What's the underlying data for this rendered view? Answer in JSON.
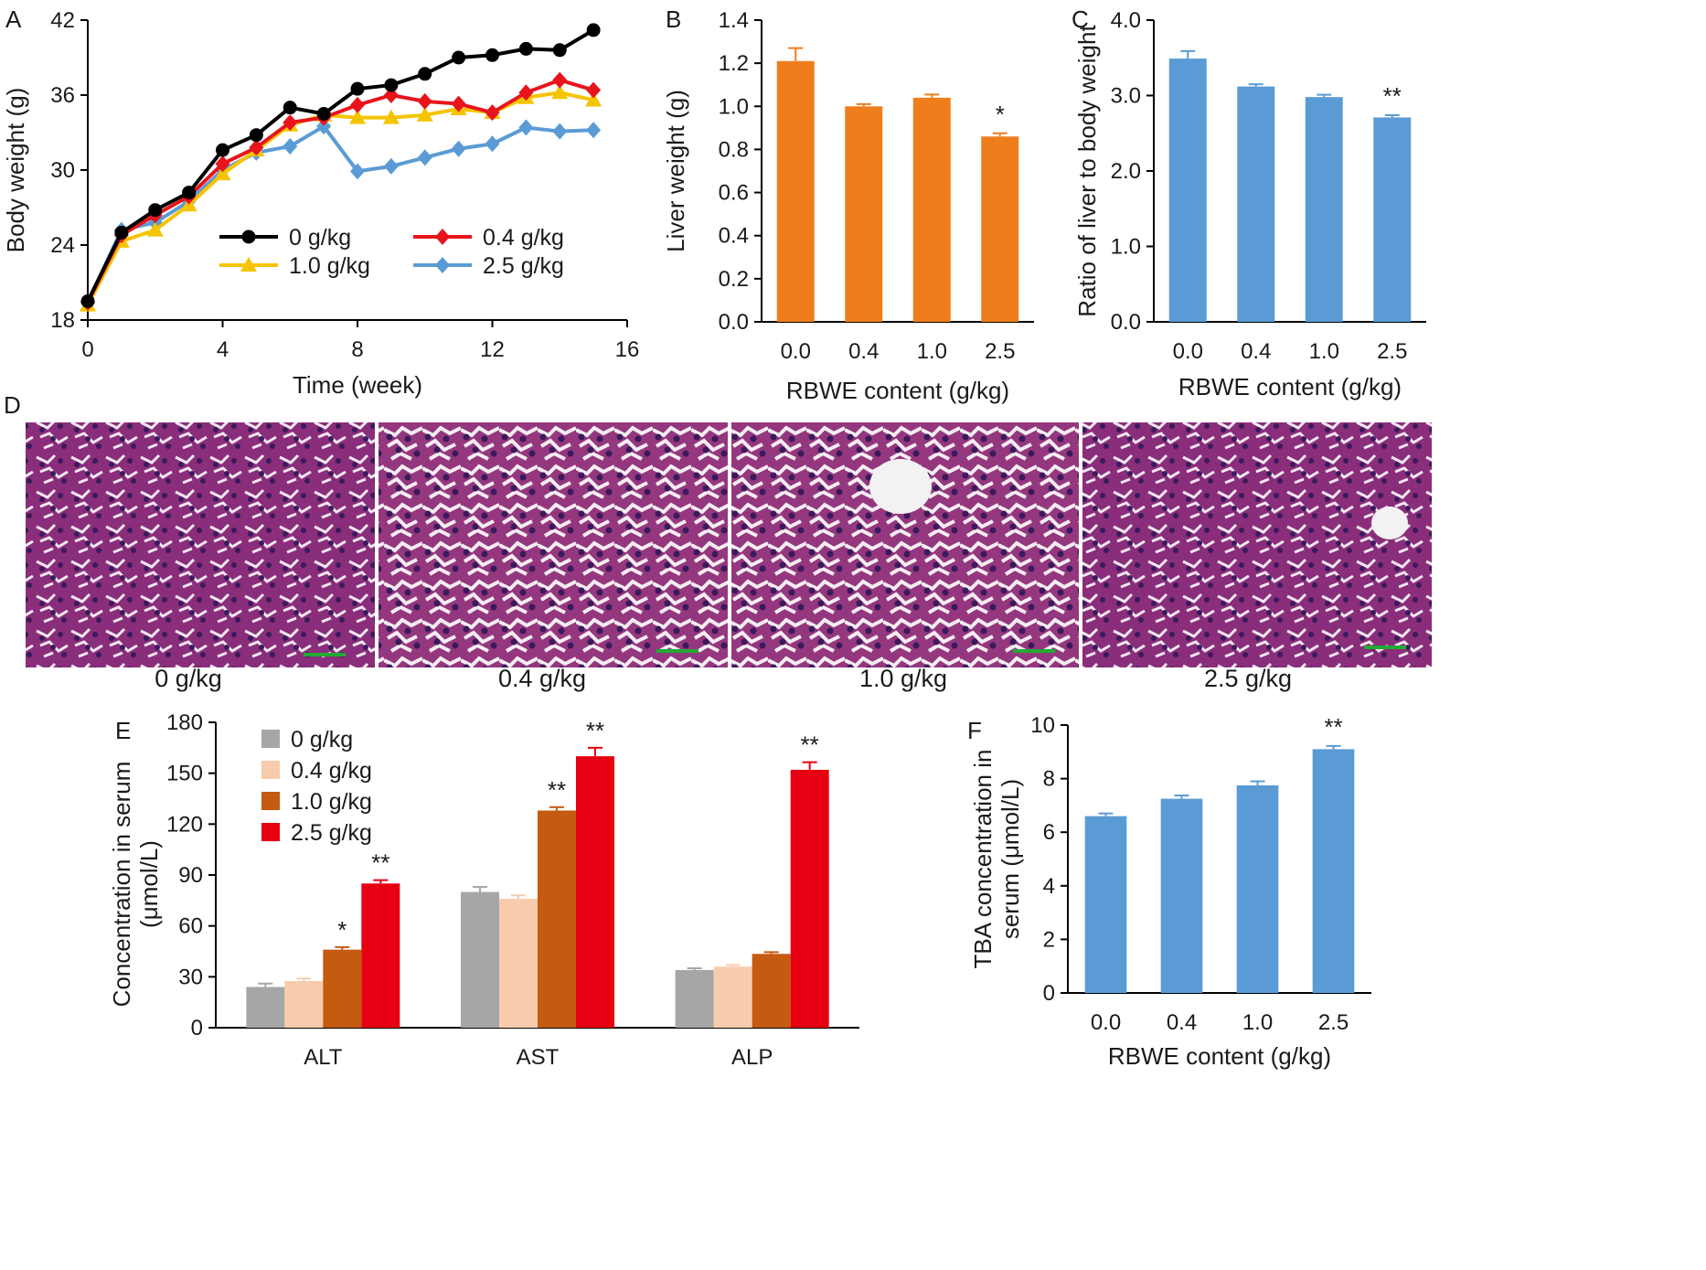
{
  "panels": {
    "A": {
      "label": "A"
    },
    "B": {
      "label": "B"
    },
    "C": {
      "label": "C"
    },
    "D": {
      "label": "D",
      "captions": [
        "0 g/kg",
        "0.4 g/kg",
        "1.0 g/kg",
        "2.5 g/kg"
      ]
    },
    "E": {
      "label": "E"
    },
    "F": {
      "label": "F"
    }
  },
  "colors": {
    "black": "#000000",
    "red": "#e8141c",
    "yellow": "#f5c400",
    "blue": "#5b9bd5",
    "orange": "#ef7d1c",
    "grey": "#a6a6a6",
    "peach": "#f8cbad",
    "burnt": "#c55a11",
    "brightred": "#e60012"
  },
  "chart_data": [
    {
      "id": "A",
      "type": "line",
      "xlabel": "Time (week)",
      "ylabel": "Body weight (g)",
      "xlim": [
        0,
        16
      ],
      "ylim": [
        18,
        42
      ],
      "xticks": [
        "0",
        "4",
        "8",
        "12",
        "16"
      ],
      "yticks": [
        "18",
        "24",
        "30",
        "36",
        "42"
      ],
      "x": [
        0,
        1,
        2,
        3,
        4,
        5,
        6,
        7,
        8,
        9,
        10,
        11,
        12,
        13,
        14,
        15
      ],
      "legend_position": "center",
      "series": [
        {
          "name": "0 g/kg",
          "color": "#000000",
          "marker": "circle",
          "values": [
            19.5,
            25,
            26.8,
            28.2,
            31.6,
            32.8,
            35,
            34.5,
            36.5,
            36.8,
            37.7,
            39,
            39.2,
            39.7,
            39.6,
            41.2
          ]
        },
        {
          "name": "0.4 g/kg",
          "color": "#e8141c",
          "marker": "diamond",
          "values": [
            19.4,
            24.8,
            26.4,
            27.9,
            30.5,
            31.8,
            33.8,
            34.2,
            35.2,
            36,
            35.5,
            35.3,
            34.6,
            36.2,
            37.2,
            36.4
          ]
        },
        {
          "name": "1.0 g/kg",
          "color": "#f5c400",
          "marker": "triangle",
          "values": [
            19.2,
            24.3,
            25.2,
            27.2,
            29.7,
            31.6,
            33.6,
            34.4,
            34.2,
            34.2,
            34.4,
            34.9,
            34.6,
            35.8,
            36.2,
            35.6
          ]
        },
        {
          "name": "2.5 g/kg",
          "color": "#5b9bd5",
          "marker": "diamond",
          "values": [
            19.4,
            25.2,
            25.8,
            27.5,
            30,
            31.4,
            31.9,
            33.5,
            29.9,
            30.3,
            31,
            31.7,
            32.1,
            33.4,
            33.1,
            33.2
          ]
        }
      ]
    },
    {
      "id": "B",
      "type": "bar",
      "xlabel": "RBWE content (g/kg)",
      "ylabel": "Liver weight (g)",
      "categories": [
        "0.0",
        "0.4",
        "1.0",
        "2.5"
      ],
      "values": [
        1.21,
        1.0,
        1.04,
        0.86
      ],
      "errors": [
        0.06,
        0.01,
        0.015,
        0.015
      ],
      "annotations": [
        "",
        "",
        "",
        "*"
      ],
      "ylim": [
        0,
        1.4
      ],
      "yticks": [
        "0.0",
        "0.2",
        "0.4",
        "0.6",
        "0.8",
        "1.0",
        "1.2",
        "1.4"
      ],
      "color": "#ef7d1c"
    },
    {
      "id": "C",
      "type": "bar",
      "xlabel": "RBWE content (g/kg)",
      "ylabel": "Ratio of liver to body weight",
      "categories": [
        "0.0",
        "0.4",
        "1.0",
        "2.5"
      ],
      "values": [
        3.49,
        3.12,
        2.98,
        2.71
      ],
      "errors": [
        0.1,
        0.03,
        0.03,
        0.03
      ],
      "annotations": [
        "",
        "",
        "",
        "**"
      ],
      "ylim": [
        0,
        4.0
      ],
      "yticks": [
        "0.0",
        "1.0",
        "2.0",
        "3.0",
        "4.0"
      ],
      "color": "#5b9bd5"
    },
    {
      "id": "E",
      "type": "bar",
      "xlabel": "",
      "ylabel": [
        "Concentration in serum",
        "(μmol/L)"
      ],
      "categories": [
        "ALT",
        "AST",
        "ALP"
      ],
      "ylim": [
        0,
        180
      ],
      "yticks": [
        "0",
        "30",
        "60",
        "90",
        "120",
        "150",
        "180"
      ],
      "legend_position": "top-left",
      "series": [
        {
          "name": "0 g/kg",
          "color": "#a6a6a6",
          "values": [
            24,
            80,
            34
          ],
          "errors": [
            2,
            3,
            1
          ],
          "annotations": [
            "",
            "",
            ""
          ]
        },
        {
          "name": "0.4 g/kg",
          "color": "#f8cbad",
          "values": [
            27.5,
            76,
            36
          ],
          "errors": [
            1.5,
            2,
            1
          ],
          "annotations": [
            "",
            "",
            ""
          ]
        },
        {
          "name": "1.0 g/kg",
          "color": "#c55a11",
          "values": [
            46,
            128,
            43.5
          ],
          "errors": [
            1.5,
            2,
            1
          ],
          "annotations": [
            "*",
            "**",
            ""
          ]
        },
        {
          "name": "2.5 g/kg",
          "color": "#e60012",
          "values": [
            85,
            160,
            152
          ],
          "errors": [
            2,
            5,
            4.5
          ],
          "annotations": [
            "**",
            "**",
            "**"
          ]
        }
      ]
    },
    {
      "id": "F",
      "type": "bar",
      "xlabel": "RBWE content (g/kg)",
      "ylabel": [
        "TBA concentration in",
        "serum (μmol/L)"
      ],
      "categories": [
        "0.0",
        "0.4",
        "1.0",
        "2.5"
      ],
      "values": [
        6.6,
        7.25,
        7.75,
        9.1
      ],
      "errors": [
        0.1,
        0.12,
        0.15,
        0.12
      ],
      "annotations": [
        "",
        "",
        "",
        "**"
      ],
      "ylim": [
        0,
        10
      ],
      "yticks": [
        "0",
        "2",
        "4",
        "6",
        "8",
        "10"
      ],
      "color": "#5b9bd5"
    }
  ]
}
